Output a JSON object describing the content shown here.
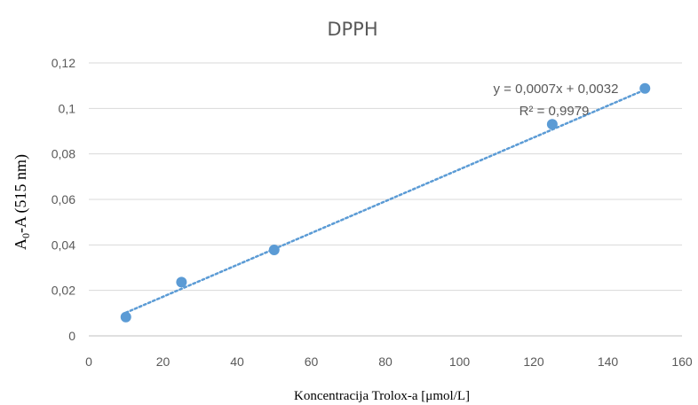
{
  "chart_data": {
    "type": "scatter",
    "title": "DPPH",
    "xlabel": "Koncentracija Trolox-a [μmol/L]",
    "ylabel_main": "A",
    "ylabel_sub": "0",
    "ylabel_rest": "-A (515 nm)",
    "xlim": [
      0,
      160
    ],
    "ylim": [
      0,
      0.12
    ],
    "x_ticks": [
      "0",
      "20",
      "40",
      "60",
      "80",
      "100",
      "120",
      "140",
      "160"
    ],
    "y_ticks": [
      "0",
      "0,02",
      "0,04",
      "0,06",
      "0,08",
      "0,1",
      "0,12"
    ],
    "grid": "horizontal",
    "series": [
      {
        "x": [
          10,
          25,
          50,
          125,
          150
        ],
        "y": [
          0.0083,
          0.0236,
          0.0378,
          0.093,
          0.1088
        ]
      }
    ],
    "trendline": {
      "type": "linear",
      "slope": 0.0007,
      "intercept": 0.0032,
      "style": "dotted"
    },
    "equation_label": "y = 0,0007x + 0,0032",
    "r2_label": "R² = 0,9979",
    "colors": {
      "marker": "#5b9bd5",
      "trendline": "#5b9bd5",
      "grid": "#d9d9d9",
      "text": "#595959"
    }
  }
}
